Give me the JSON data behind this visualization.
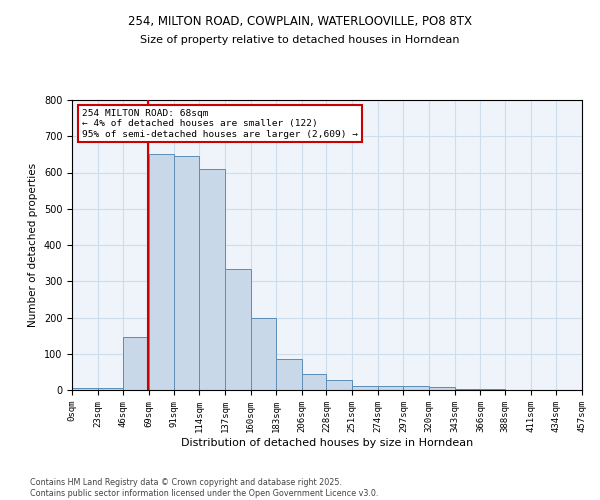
{
  "title_line1": "254, MILTON ROAD, COWPLAIN, WATERLOOVILLE, PO8 8TX",
  "title_line2": "Size of property relative to detached houses in Horndean",
  "xlabel": "Distribution of detached houses by size in Horndean",
  "ylabel": "Number of detached properties",
  "bin_edges": [
    0,
    23,
    46,
    69,
    91,
    114,
    137,
    160,
    183,
    206,
    228,
    251,
    274,
    297,
    320,
    343,
    366,
    388,
    411,
    434,
    457
  ],
  "bar_heights": [
    5,
    5,
    145,
    650,
    645,
    610,
    335,
    200,
    85,
    43,
    27,
    10,
    12,
    10,
    7,
    3,
    2,
    1,
    1,
    1
  ],
  "tick_labels": [
    "0sqm",
    "23sqm",
    "46sqm",
    "69sqm",
    "91sqm",
    "114sqm",
    "137sqm",
    "160sqm",
    "183sqm",
    "206sqm",
    "228sqm",
    "251sqm",
    "274sqm",
    "297sqm",
    "320sqm",
    "343sqm",
    "366sqm",
    "388sqm",
    "411sqm",
    "434sqm",
    "457sqm"
  ],
  "bar_color": "#c8d8e8",
  "bar_edge_color": "#5b8db8",
  "property_line_x": 68,
  "property_line_color": "#cc0000",
  "annotation_text": "254 MILTON ROAD: 68sqm\n← 4% of detached houses are smaller (122)\n95% of semi-detached houses are larger (2,609) →",
  "annotation_box_color": "#cc0000",
  "ylim": [
    0,
    800
  ],
  "yticks": [
    0,
    100,
    200,
    300,
    400,
    500,
    600,
    700,
    800
  ],
  "grid_color": "#ccddee",
  "background_color": "#eef4fa",
  "footer_line1": "Contains HM Land Registry data © Crown copyright and database right 2025.",
  "footer_line2": "Contains public sector information licensed under the Open Government Licence v3.0."
}
